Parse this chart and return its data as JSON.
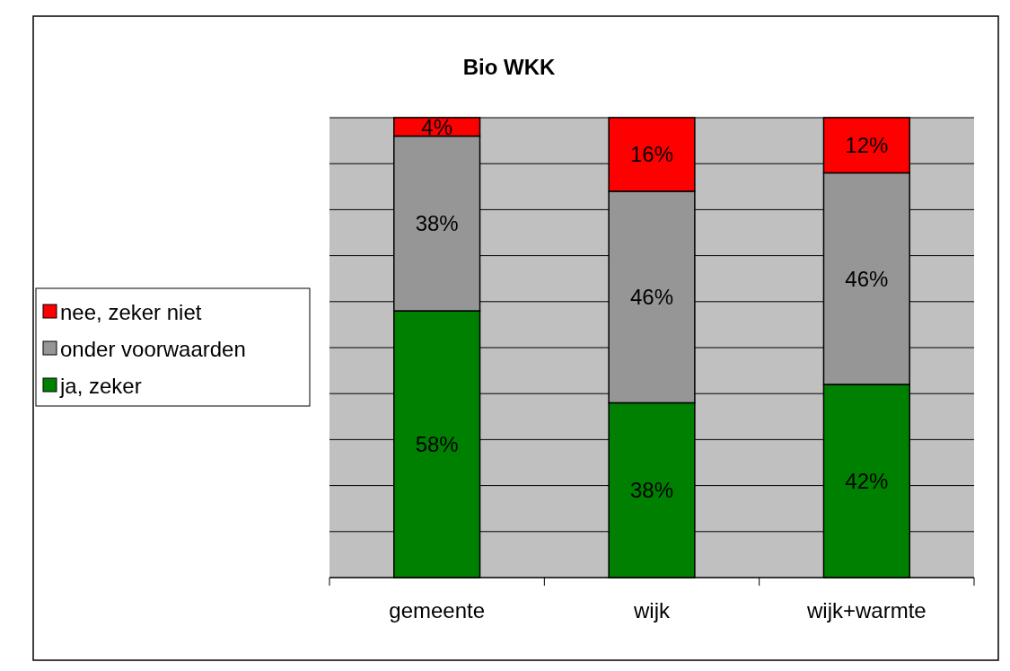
{
  "chart_data": {
    "type": "bar",
    "title": "Bio WKK",
    "stacked": true,
    "grid": "y",
    "legend": "left",
    "categories": [
      "gemeente",
      "wijk",
      "wijk+warmte"
    ],
    "ylim": [
      0,
      100
    ],
    "yticks": [
      {
        "value": 0,
        "label": null
      },
      {
        "value": 10,
        "label": null
      },
      {
        "value": 20,
        "label": null
      },
      {
        "value": 30,
        "label": null
      },
      {
        "value": 40,
        "label": null
      },
      {
        "value": 50,
        "label": null
      },
      {
        "value": 60,
        "label": null
      },
      {
        "value": 70,
        "label": null
      },
      {
        "value": 80,
        "label": null
      },
      {
        "value": 90,
        "label": null
      },
      {
        "value": 100,
        "label": null
      }
    ],
    "tick_labels": "x",
    "series": [
      {
        "name": "ja, zeker",
        "color": "#008000",
        "values": [
          58,
          38,
          42
        ],
        "value_labels": [
          "58%",
          "38%",
          "42%"
        ]
      },
      {
        "name": "onder voorwaarden",
        "color": "#969696",
        "values": [
          38,
          46,
          46
        ],
        "value_labels": [
          "38%",
          "46%",
          "46%"
        ]
      },
      {
        "name": "nee, zeker niet",
        "color": "#ff0000",
        "values": [
          4,
          16,
          12
        ],
        "value_labels": [
          "4%",
          "16%",
          "12%"
        ]
      }
    ]
  }
}
